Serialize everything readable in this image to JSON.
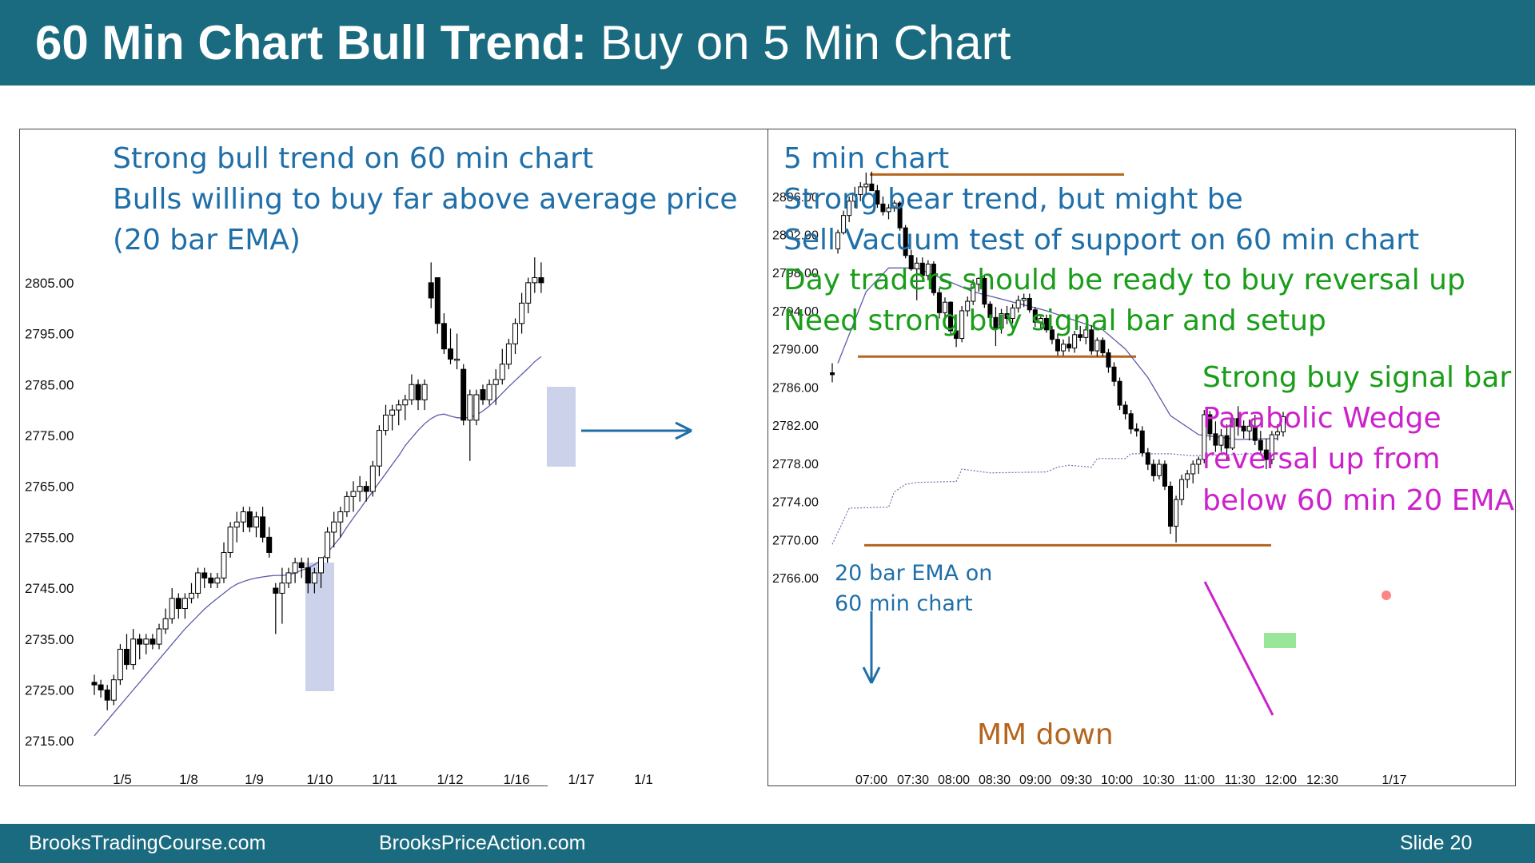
{
  "slide": {
    "title_bold": "60 Min Chart Bull Trend:",
    "title_regular": " Buy on 5 Min Chart",
    "footer_left": "BrooksTradingCourse.com",
    "footer_center": "BrooksPriceAction.com",
    "footer_right": "Slide  20",
    "colors": {
      "header": "#1b6b80",
      "blue_text": "#1f6fa8",
      "green_text": "#1a9e1a",
      "magenta_text": "#cc22cc",
      "orange": "#b5651d",
      "ema": "#5c5ca8"
    }
  },
  "chart_data": [
    {
      "type": "candlestick",
      "timeframe": "60 min",
      "annotations": [
        "Strong bull trend on 60 min chart",
        "Bulls willing to buy far above average price",
        "(20 bar EMA)"
      ],
      "y_ticks": [
        "2805.00",
        "2795.00",
        "2785.00",
        "2775.00",
        "2765.00",
        "2755.00",
        "2745.00",
        "2735.00",
        "2725.00",
        "2715.00"
      ],
      "x_ticks": [
        "1/5",
        "1/8",
        "1/9",
        "1/10",
        "1/11",
        "1/12",
        "1/16",
        "1/17",
        "1/1"
      ],
      "ylim": [
        2712,
        2810
      ],
      "ema_label": "20 bar EMA",
      "candles": [
        [
          2726.5,
          2728,
          2724,
          2726
        ],
        [
          2726,
          2727,
          2723.5,
          2725
        ],
        [
          2725,
          2726,
          2721,
          2723
        ],
        [
          2723,
          2728,
          2722,
          2727
        ],
        [
          2727,
          2734,
          2726,
          2733
        ],
        [
          2733,
          2736,
          2729,
          2730
        ],
        [
          2730,
          2737,
          2729,
          2735
        ],
        [
          2735,
          2736,
          2731,
          2734
        ],
        [
          2734,
          2736,
          2732,
          2735
        ],
        [
          2735,
          2736,
          2733,
          2734
        ],
        [
          2734,
          2738,
          2733,
          2737
        ],
        [
          2737,
          2741,
          2736,
          2739
        ],
        [
          2739,
          2745,
          2738,
          2743
        ],
        [
          2743,
          2744,
          2739,
          2741
        ],
        [
          2741,
          2744,
          2739,
          2743
        ],
        [
          2743,
          2746,
          2742,
          2744
        ],
        [
          2744,
          2749,
          2743,
          2748
        ],
        [
          2748,
          2749,
          2745,
          2747
        ],
        [
          2747,
          2748,
          2745,
          2746
        ],
        [
          2746,
          2748,
          2745,
          2747
        ],
        [
          2747,
          2754,
          2746,
          2752
        ],
        [
          2752,
          2758,
          2751,
          2757
        ],
        [
          2757,
          2760,
          2754,
          2758
        ],
        [
          2758,
          2761,
          2756,
          2760
        ],
        [
          2760,
          2761,
          2756,
          2757
        ],
        [
          2757,
          2760,
          2755,
          2759
        ],
        [
          2759,
          2761,
          2754,
          2755
        ],
        [
          2755,
          2757,
          2751,
          2752
        ],
        [
          2745,
          2746,
          2736,
          2744
        ],
        [
          2744,
          2749,
          2738,
          2746
        ],
        [
          2746,
          2749,
          2745,
          2748
        ],
        [
          2748,
          2751,
          2746,
          2750
        ],
        [
          2750,
          2751,
          2747,
          2749
        ],
        [
          2749,
          2751,
          2744,
          2746
        ],
        [
          2746,
          2749,
          2744,
          2748
        ],
        [
          2748,
          2751,
          2745,
          2751
        ],
        [
          2751,
          2757,
          2750,
          2756
        ],
        [
          2756,
          2760,
          2753,
          2758
        ],
        [
          2758,
          2761,
          2755,
          2760
        ],
        [
          2760,
          2764,
          2759,
          2763
        ],
        [
          2763,
          2766,
          2760,
          2764
        ],
        [
          2764,
          2767,
          2762,
          2765
        ],
        [
          2765,
          2766,
          2762,
          2764
        ],
        [
          2764,
          2770,
          2763,
          2769
        ],
        [
          2769,
          2777,
          2767,
          2776
        ],
        [
          2776,
          2781,
          2775,
          2779
        ],
        [
          2779,
          2781,
          2776,
          2780
        ],
        [
          2780,
          2782,
          2777,
          2781
        ],
        [
          2781,
          2783,
          2778,
          2782
        ],
        [
          2782,
          2787,
          2781,
          2785
        ],
        [
          2785,
          2786,
          2780,
          2782
        ],
        [
          2782,
          2786,
          2780,
          2785
        ],
        [
          2805,
          2809,
          2800,
          2802
        ],
        [
          2806,
          2806,
          2795,
          2797
        ],
        [
          2797,
          2799,
          2791,
          2792
        ],
        [
          2792,
          2796,
          2789,
          2790
        ],
        [
          2790,
          2795,
          2788,
          2790
        ],
        [
          2788,
          2789,
          2777,
          2778
        ],
        [
          2778,
          2784,
          2770,
          2783
        ],
        [
          2778,
          2784,
          2777,
          2783
        ],
        [
          2784,
          2785,
          2781,
          2782
        ],
        [
          2782,
          2786,
          2781,
          2785
        ],
        [
          2785,
          2788,
          2781,
          2786
        ],
        [
          2786,
          2792,
          2785,
          2789
        ],
        [
          2789,
          2794,
          2788,
          2793
        ],
        [
          2793,
          2798,
          2791,
          2797
        ],
        [
          2797,
          2803,
          2795,
          2801
        ],
        [
          2801,
          2806,
          2799,
          2805
        ],
        [
          2805,
          2810,
          2803,
          2806
        ],
        [
          2806,
          2809,
          2803,
          2805
        ]
      ],
      "ema": [
        2716,
        2717.5,
        2719,
        2720.5,
        2722,
        2723.5,
        2725,
        2726.5,
        2728,
        2729.5,
        2731,
        2732.5,
        2734,
        2735.5,
        2737,
        2738.3,
        2739.6,
        2740.9,
        2742,
        2743,
        2744,
        2745,
        2745.8,
        2746.3,
        2746.7,
        2747,
        2747.2,
        2747.4,
        2747.5,
        2747.5,
        2747.6,
        2748,
        2748.5,
        2749,
        2749.6,
        2750.5,
        2752,
        2753.5,
        2755,
        2757,
        2758.8,
        2760.5,
        2762.3,
        2764,
        2765.8,
        2767.5,
        2769.3,
        2771,
        2773,
        2774.5,
        2776,
        2777.3,
        2778.3,
        2779,
        2779.2,
        2778.8,
        2778.5,
        2778.4,
        2778.6,
        2779,
        2779.8,
        2780.8,
        2782,
        2783.3,
        2784.6,
        2785.8,
        2787,
        2788.2,
        2789.5,
        2790.5
      ]
    },
    {
      "type": "candlestick",
      "timeframe": "5 min",
      "annotations": [
        {
          "text": "5 min chart",
          "color": "blue"
        },
        {
          "text": "Strong bear trend, but might be",
          "color": "blue"
        },
        {
          "text": "Sell Vacuum test of support on 60 min chart",
          "color": "blue"
        },
        {
          "text": "Day traders should be ready to buy reversal up",
          "color": "green"
        },
        {
          "text": "Need strong buy signal bar and setup",
          "color": "green"
        },
        {
          "text": "Strong buy signal bar",
          "color": "green"
        },
        {
          "text": "Parabolic Wedge",
          "color": "magenta"
        },
        {
          "text": "reversal up from",
          "color": "magenta"
        },
        {
          "text": "below 60 min 20 EMA",
          "color": "magenta"
        },
        {
          "text": "20 bar EMA on",
          "color": "blue"
        },
        {
          "text": "60 min chart",
          "color": "blue"
        },
        {
          "text": "MM down",
          "color": "orange"
        }
      ],
      "y_ticks": [
        "2806.00",
        "2802.00",
        "2798.00",
        "2794.00",
        "2790.00",
        "2786.00",
        "2782.00",
        "2778.00",
        "2774.00",
        "2770.00",
        "2766.00"
      ],
      "x_ticks": [
        "07:00",
        "07:30",
        "08:00",
        "08:30",
        "09:00",
        "09:30",
        "10:00",
        "10:30",
        "11:00",
        "11:30",
        "12:00",
        "12:30",
        "1/17"
      ],
      "ylim": [
        2765,
        2809
      ],
      "levels": {
        "top": 2808.3,
        "support": 2789.2,
        "measured_move": 2769.4
      },
      "candles": [
        [
          2787.5,
          2788.5,
          2786.5,
          2787.3
        ],
        [
          2800.5,
          2802.5,
          2800,
          2802.2
        ],
        [
          2802.2,
          2804.5,
          2802,
          2804
        ],
        [
          2804,
          2806,
          2803.3,
          2805.5
        ],
        [
          2805.5,
          2807,
          2804.8,
          2806.2
        ],
        [
          2806.2,
          2807.5,
          2805.5,
          2807
        ],
        [
          2807,
          2808.5,
          2806.3,
          2807.3
        ],
        [
          2807.3,
          2808.6,
          2806.6,
          2806.6
        ],
        [
          2806.6,
          2807.2,
          2804.8,
          2805.2
        ],
        [
          2805.2,
          2806,
          2804,
          2804.4
        ],
        [
          2804.4,
          2805.2,
          2803.6,
          2804.8
        ],
        [
          2804.8,
          2805.6,
          2804.4,
          2805.3
        ],
        [
          2805.3,
          2805.5,
          2802.4,
          2802.7
        ],
        [
          2802.7,
          2803,
          2799.5,
          2799.8
        ],
        [
          2799.8,
          2800.4,
          2798.2,
          2798.4
        ],
        [
          2798.4,
          2799.6,
          2795.1,
          2799
        ],
        [
          2799,
          2799.6,
          2797.4,
          2797.7
        ],
        [
          2797.7,
          2799.3,
          2797.2,
          2798.9
        ],
        [
          2798.9,
          2799.2,
          2795.6,
          2795.9
        ],
        [
          2795.9,
          2796.4,
          2793.2,
          2793.8
        ],
        [
          2793.8,
          2795.4,
          2793.1,
          2794.9
        ],
        [
          2794.9,
          2795,
          2791.5,
          2791.9
        ],
        [
          2791.9,
          2792.7,
          2790.2,
          2791.1
        ],
        [
          2791.1,
          2794.5,
          2790.7,
          2794
        ],
        [
          2794,
          2795.5,
          2793.4,
          2795
        ],
        [
          2795,
          2797.3,
          2794.6,
          2796.8
        ],
        [
          2796.8,
          2797.5,
          2796,
          2797.4
        ],
        [
          2797.4,
          2797.7,
          2794.3,
          2794.7
        ],
        [
          2794.7,
          2795,
          2792.3,
          2793.3
        ],
        [
          2793.3,
          2794.4,
          2790.3,
          2792.2
        ],
        [
          2792.2,
          2794.2,
          2791.6,
          2793.7
        ],
        [
          2793.7,
          2794.5,
          2792.6,
          2793.2
        ],
        [
          2793.2,
          2794.7,
          2792.7,
          2794.3
        ],
        [
          2794.3,
          2795.6,
          2793.8,
          2795.1
        ],
        [
          2795.1,
          2795.8,
          2794.4,
          2795.3
        ],
        [
          2795.3,
          2795.8,
          2793.8,
          2794.1
        ],
        [
          2794.1,
          2794.4,
          2792.3,
          2792.8
        ],
        [
          2792.8,
          2793.4,
          2792.1,
          2793.2
        ],
        [
          2793.2,
          2793.6,
          2791.7,
          2792
        ],
        [
          2792,
          2792.4,
          2790.5,
          2791
        ],
        [
          2791,
          2791.6,
          2789.3,
          2789.8
        ],
        [
          2789.8,
          2791,
          2789.3,
          2790.5
        ],
        [
          2790.5,
          2791.3,
          2789.7,
          2790.1
        ],
        [
          2790.1,
          2791.9,
          2789.6,
          2791.5
        ],
        [
          2791.5,
          2792.4,
          2790.8,
          2791.2
        ],
        [
          2791.2,
          2792.4,
          2790.5,
          2792
        ],
        [
          2792,
          2792.5,
          2789.4,
          2789.8
        ],
        [
          2789.8,
          2791.2,
          2789.2,
          2790.9
        ],
        [
          2790.9,
          2791.2,
          2789.2,
          2789.6
        ],
        [
          2789.6,
          2790,
          2787.5,
          2788.1
        ],
        [
          2788.1,
          2788.6,
          2786.1,
          2786.6
        ],
        [
          2786.6,
          2787,
          2783.6,
          2784.1
        ],
        [
          2784.1,
          2784.5,
          2782.6,
          2783.2
        ],
        [
          2783.2,
          2783.6,
          2781.1,
          2781.6
        ],
        [
          2781.6,
          2782.2,
          2780.8,
          2781.4
        ],
        [
          2781.4,
          2781.9,
          2778.7,
          2779.1
        ],
        [
          2779.1,
          2779.6,
          2777.3,
          2777.9
        ],
        [
          2777.9,
          2778.4,
          2776.1,
          2776.7
        ],
        [
          2776.7,
          2778.4,
          2776.3,
          2777.9
        ],
        [
          2777.9,
          2778.3,
          2775.2,
          2775.6
        ],
        [
          2775.6,
          2776.1,
          2770.6,
          2771.4
        ],
        [
          2771.4,
          2774.6,
          2769.7,
          2774.2
        ],
        [
          2774.2,
          2776.8,
          2773.6,
          2776.3
        ],
        [
          2776.3,
          2777.3,
          2775.4,
          2776.9
        ],
        [
          2776.9,
          2778.3,
          2775.9,
          2777.9
        ],
        [
          2777.9,
          2778.7,
          2776.9,
          2778.4
        ],
        [
          2778.4,
          2783.6,
          2778,
          2783.1
        ],
        [
          2783.1,
          2783.5,
          2780.4,
          2781.1
        ],
        [
          2781.1,
          2782.4,
          2779.2,
          2779.9
        ],
        [
          2779.9,
          2781.6,
          2779.2,
          2780.9
        ],
        [
          2780.9,
          2782.1,
          2778.3,
          2779.6
        ],
        [
          2779.6,
          2783.1,
          2779.4,
          2782.7
        ],
        [
          2782.7,
          2784,
          2780.9,
          2781.9
        ],
        [
          2781.9,
          2782.5,
          2780.6,
          2781.4
        ],
        [
          2781.4,
          2782.6,
          2780.4,
          2781.9
        ],
        [
          2781.9,
          2783.1,
          2779.9,
          2780.4
        ],
        [
          2780.4,
          2781.4,
          2778.9,
          2779.4
        ],
        [
          2779.4,
          2780.6,
          2777.4,
          2778.4
        ],
        [
          2778.4,
          2781.4,
          2777.9,
          2781
        ],
        [
          2781,
          2782.1,
          2780.4,
          2781.3
        ],
        [
          2781.3,
          2783.4,
          2780.8,
          2782.9
        ]
      ],
      "ema_5min": [
        [
          1,
          2788.5
        ],
        [
          6,
          2796
        ],
        [
          10,
          2798.5
        ],
        [
          15,
          2798.5
        ],
        [
          25,
          2796
        ],
        [
          38,
          2794
        ],
        [
          48,
          2792
        ],
        [
          52,
          2790
        ],
        [
          56,
          2787
        ],
        [
          60,
          2783
        ],
        [
          65,
          2781
        ],
        [
          72,
          2780.5
        ],
        [
          79,
          2780.6
        ]
      ],
      "ema_60min": [
        [
          0,
          2769.5
        ],
        [
          3,
          2773.3
        ],
        [
          10,
          2773.4
        ],
        [
          11,
          2775
        ],
        [
          13,
          2775.8
        ],
        [
          15,
          2776
        ],
        [
          22,
          2776.1
        ],
        [
          23,
          2777.4
        ],
        [
          28,
          2777
        ],
        [
          38,
          2777.1
        ],
        [
          40,
          2777.6
        ],
        [
          42,
          2777.8
        ],
        [
          46,
          2777.6
        ],
        [
          47,
          2778.5
        ],
        [
          52,
          2778.5
        ],
        [
          53,
          2779
        ],
        [
          60,
          2779
        ],
        [
          64,
          2778.8
        ],
        [
          70,
          2778.9
        ],
        [
          79,
          2779.1
        ]
      ]
    }
  ]
}
